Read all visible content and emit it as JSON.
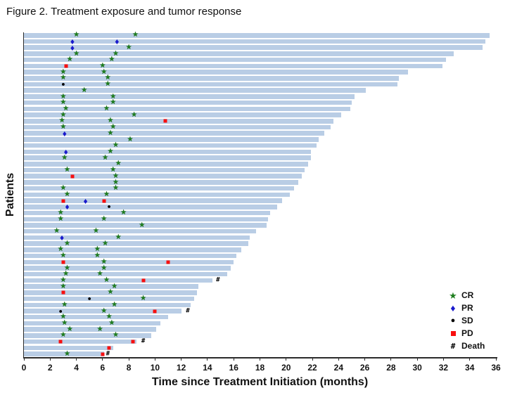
{
  "figure": {
    "title": "Figure 2. Treatment exposure and tumor response"
  },
  "axes": {
    "x_label": "Time since Treatment Initiation (months)",
    "y_label": "Patients",
    "x_ticks": [
      0,
      2,
      4,
      6,
      8,
      10,
      12,
      14,
      16,
      18,
      20,
      22,
      24,
      26,
      28,
      30,
      32,
      34,
      36
    ]
  },
  "legend": {
    "items": [
      {
        "key": "CR",
        "label": "CR"
      },
      {
        "key": "PR",
        "label": "PR"
      },
      {
        "key": "SD",
        "label": "SD"
      },
      {
        "key": "PD",
        "label": "PD"
      },
      {
        "key": "Death",
        "label": "Death"
      }
    ]
  },
  "colors": {
    "bar": "#b9cde5",
    "cr": "#1e7e1e",
    "pr": "#1a1acd",
    "sd": "#000000",
    "pd": "#f80f0f",
    "death": "#000000",
    "axis": "#2b2b2b"
  },
  "chart_data": {
    "type": "bar",
    "orientation": "horizontal",
    "title": "Figure 2. Treatment exposure and tumor response",
    "xlabel": "Time since Treatment Initiation (months)",
    "ylabel": "Patients",
    "xlim": [
      0,
      36
    ],
    "x_tick_step": 2,
    "grid": false,
    "legend_position": "lower right",
    "marker_glyphs": {
      "CR": "green star",
      "PR": "blue diamond",
      "SD": "black circle",
      "PD": "red square",
      "Death": "black hash"
    },
    "bar_unit": "months of treatment exposure",
    "patients": [
      {
        "bar": 35.5,
        "events": [
          [
            "CR",
            4.0
          ],
          [
            "CR",
            8.5
          ]
        ]
      },
      {
        "bar": 35.2,
        "events": [
          [
            "PR",
            3.7
          ],
          [
            "PR",
            7.1
          ]
        ]
      },
      {
        "bar": 35.0,
        "events": [
          [
            "PR",
            3.7
          ],
          [
            "CR",
            8.0
          ]
        ]
      },
      {
        "bar": 32.8,
        "events": [
          [
            "CR",
            4.0
          ],
          [
            "CR",
            7.0
          ]
        ]
      },
      {
        "bar": 32.2,
        "events": [
          [
            "CR",
            3.5
          ],
          [
            "CR",
            6.7
          ]
        ]
      },
      {
        "bar": 31.9,
        "events": [
          [
            "PD",
            3.2
          ],
          [
            "CR",
            6.0
          ]
        ]
      },
      {
        "bar": 29.3,
        "events": [
          [
            "CR",
            3.0
          ],
          [
            "CR",
            6.1
          ]
        ]
      },
      {
        "bar": 28.6,
        "events": [
          [
            "CR",
            3.0
          ],
          [
            "CR",
            6.4
          ]
        ]
      },
      {
        "bar": 28.5,
        "events": [
          [
            "SD",
            3.0
          ],
          [
            "CR",
            6.4
          ]
        ]
      },
      {
        "bar": 26.1,
        "events": [
          [
            "CR",
            4.6
          ]
        ]
      },
      {
        "bar": 25.2,
        "events": [
          [
            "CR",
            3.0
          ],
          [
            "CR",
            6.8
          ]
        ]
      },
      {
        "bar": 25.0,
        "events": [
          [
            "CR",
            3.0
          ],
          [
            "CR",
            6.8
          ]
        ]
      },
      {
        "bar": 24.9,
        "events": [
          [
            "CR",
            3.2
          ],
          [
            "CR",
            6.3
          ]
        ]
      },
      {
        "bar": 24.2,
        "events": [
          [
            "CR",
            3.0
          ],
          [
            "CR",
            8.4
          ]
        ]
      },
      {
        "bar": 23.6,
        "events": [
          [
            "CR",
            2.9
          ],
          [
            "CR",
            6.6
          ],
          [
            "PD",
            10.8
          ]
        ]
      },
      {
        "bar": 23.4,
        "events": [
          [
            "CR",
            3.0
          ],
          [
            "CR",
            6.8
          ]
        ]
      },
      {
        "bar": 22.9,
        "events": [
          [
            "PR",
            3.1
          ],
          [
            "CR",
            6.6
          ]
        ]
      },
      {
        "bar": 22.5,
        "events": [
          [
            "CR",
            8.1
          ]
        ]
      },
      {
        "bar": 22.3,
        "events": [
          [
            "CR",
            7.0
          ]
        ]
      },
      {
        "bar": 21.9,
        "events": [
          [
            "PR",
            3.2
          ],
          [
            "CR",
            6.6
          ]
        ]
      },
      {
        "bar": 21.9,
        "events": [
          [
            "CR",
            3.1
          ],
          [
            "CR",
            6.2
          ]
        ]
      },
      {
        "bar": 21.7,
        "events": [
          [
            "CR",
            7.2
          ]
        ]
      },
      {
        "bar": 21.4,
        "events": [
          [
            "CR",
            3.3
          ],
          [
            "CR",
            6.8
          ]
        ]
      },
      {
        "bar": 21.2,
        "events": [
          [
            "PD",
            3.7
          ],
          [
            "CR",
            7.0
          ]
        ]
      },
      {
        "bar": 20.9,
        "events": [
          [
            "CR",
            7.0
          ]
        ]
      },
      {
        "bar": 20.6,
        "events": [
          [
            "CR",
            3.0
          ],
          [
            "CR",
            7.0
          ]
        ]
      },
      {
        "bar": 20.3,
        "events": [
          [
            "CR",
            3.3
          ],
          [
            "CR",
            6.3
          ]
        ]
      },
      {
        "bar": 19.7,
        "events": [
          [
            "PD",
            3.0
          ],
          [
            "PR",
            4.7
          ],
          [
            "PD",
            6.1
          ]
        ]
      },
      {
        "bar": 19.3,
        "events": [
          [
            "PR",
            3.3
          ],
          [
            "SD",
            6.5
          ]
        ]
      },
      {
        "bar": 18.8,
        "events": [
          [
            "CR",
            2.8
          ],
          [
            "CR",
            7.6
          ]
        ]
      },
      {
        "bar": 18.6,
        "events": [
          [
            "CR",
            2.8
          ],
          [
            "CR",
            6.1
          ]
        ]
      },
      {
        "bar": 18.5,
        "events": [
          [
            "CR",
            9.0
          ]
        ]
      },
      {
        "bar": 17.7,
        "events": [
          [
            "CR",
            2.5
          ],
          [
            "CR",
            5.5
          ]
        ]
      },
      {
        "bar": 17.2,
        "events": [
          [
            "PR",
            2.9
          ],
          [
            "CR",
            7.2
          ]
        ]
      },
      {
        "bar": 17.1,
        "events": [
          [
            "CR",
            3.3
          ],
          [
            "CR",
            6.2
          ]
        ]
      },
      {
        "bar": 16.6,
        "events": [
          [
            "CR",
            2.8
          ],
          [
            "CR",
            5.6
          ]
        ]
      },
      {
        "bar": 16.2,
        "events": [
          [
            "CR",
            3.0
          ],
          [
            "CR",
            5.6
          ]
        ]
      },
      {
        "bar": 16.0,
        "events": [
          [
            "PD",
            3.0
          ],
          [
            "CR",
            6.1
          ],
          [
            "PD",
            11.0
          ]
        ]
      },
      {
        "bar": 15.8,
        "events": [
          [
            "CR",
            3.3
          ],
          [
            "CR",
            6.1
          ]
        ]
      },
      {
        "bar": 15.5,
        "events": [
          [
            "CR",
            3.2
          ],
          [
            "CR",
            5.8
          ]
        ]
      },
      {
        "bar": 14.4,
        "events": [
          [
            "CR",
            3.0
          ],
          [
            "CR",
            6.3
          ],
          [
            "PD",
            9.1
          ],
          [
            "Death",
            14.8
          ]
        ]
      },
      {
        "bar": 13.3,
        "events": [
          [
            "CR",
            3.0
          ],
          [
            "CR",
            6.9
          ]
        ]
      },
      {
        "bar": 13.2,
        "events": [
          [
            "PD",
            3.0
          ],
          [
            "CR",
            6.6
          ]
        ]
      },
      {
        "bar": 13.0,
        "events": [
          [
            "SD",
            5.0
          ],
          [
            "CR",
            9.1
          ]
        ]
      },
      {
        "bar": 12.7,
        "events": [
          [
            "CR",
            3.1
          ],
          [
            "CR",
            6.9
          ]
        ]
      },
      {
        "bar": 12.0,
        "events": [
          [
            "SD",
            2.8
          ],
          [
            "CR",
            6.1
          ],
          [
            "PD",
            10.0
          ],
          [
            "Death",
            12.5
          ]
        ]
      },
      {
        "bar": 11.0,
        "events": [
          [
            "CR",
            3.0
          ],
          [
            "CR",
            6.5
          ]
        ]
      },
      {
        "bar": 10.4,
        "events": [
          [
            "CR",
            3.1
          ],
          [
            "CR",
            6.7
          ]
        ]
      },
      {
        "bar": 10.1,
        "events": [
          [
            "CR",
            3.5
          ],
          [
            "CR",
            5.8
          ]
        ]
      },
      {
        "bar": 9.7,
        "events": [
          [
            "CR",
            3.0
          ],
          [
            "CR",
            7.0
          ]
        ]
      },
      {
        "bar": 8.6,
        "events": [
          [
            "PD",
            2.8
          ],
          [
            "PD",
            8.3
          ],
          [
            "Death",
            9.1
          ]
        ]
      },
      {
        "bar": 6.8,
        "events": [
          [
            "PD",
            6.5
          ]
        ]
      },
      {
        "bar": 6.1,
        "events": [
          [
            "CR",
            3.3
          ],
          [
            "PD",
            6.0
          ],
          [
            "Death",
            6.4
          ]
        ]
      }
    ]
  }
}
